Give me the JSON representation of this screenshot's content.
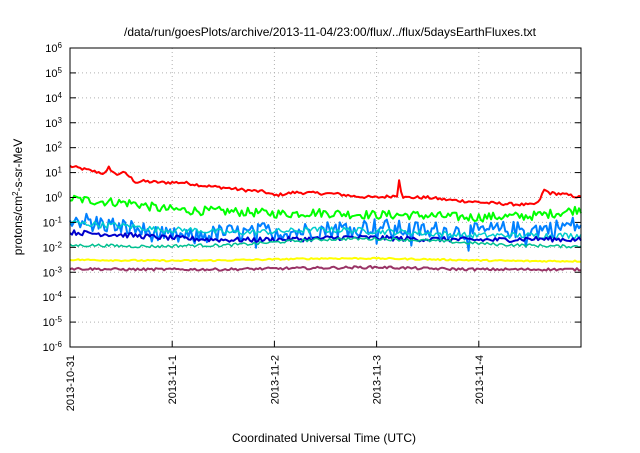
{
  "chart_data": {
    "type": "line",
    "title": "/data/run/goesPlots/archive/2013-11-04/23:00/flux/../flux/5daysEarthFluxes.txt",
    "xlabel": "Coordinated Universal Time (UTC)",
    "ylabel": "protons/cm²-s-sr-MeV",
    "yscale": "log",
    "ylim": [
      1e-06,
      1000000.0
    ],
    "xlim": [
      0,
      5.0
    ],
    "grid": true,
    "legend": "none",
    "x_ticks": [
      {
        "x": 0,
        "label": "2013-10-31"
      },
      {
        "x": 1,
        "label": "2013-11-1"
      },
      {
        "x": 2,
        "label": "2013-11-2"
      },
      {
        "x": 3,
        "label": "2013-11-3"
      },
      {
        "x": 4,
        "label": "2013-11-4"
      }
    ],
    "y_ticks": [
      {
        "exp": -6,
        "mant": "10",
        "sup": "-6"
      },
      {
        "exp": -5,
        "mant": "10",
        "sup": "-5"
      },
      {
        "exp": -4,
        "mant": "10",
        "sup": "-4"
      },
      {
        "exp": -3,
        "mant": "10",
        "sup": "-3"
      },
      {
        "exp": -2,
        "mant": "10",
        "sup": "-2"
      },
      {
        "exp": -1,
        "mant": "10",
        "sup": "-1"
      },
      {
        "exp": 0,
        "mant": "10",
        "sup": "0"
      },
      {
        "exp": 1,
        "mant": "10",
        "sup": "1"
      },
      {
        "exp": 2,
        "mant": "10",
        "sup": "2"
      },
      {
        "exp": 3,
        "mant": "10",
        "sup": "3"
      },
      {
        "exp": 4,
        "mant": "10",
        "sup": "4"
      },
      {
        "exp": 5,
        "mant": "10",
        "sup": "5"
      },
      {
        "exp": 6,
        "mant": "10",
        "sup": "6"
      }
    ],
    "series": [
      {
        "color": "#ff0000",
        "width": 2,
        "x": [
          0,
          0.2,
          0.35,
          0.38,
          0.45,
          0.5,
          0.55,
          0.62,
          0.65,
          0.7,
          0.9,
          1.1,
          1.2,
          1.3,
          1.5,
          1.7,
          1.9,
          2.0,
          2.2,
          2.4,
          2.6,
          2.8,
          3.0,
          3.2,
          3.22,
          3.25,
          3.28,
          3.5,
          3.7,
          3.9,
          4.1,
          4.3,
          4.5,
          4.58,
          4.64,
          4.7,
          4.8,
          4.9,
          5.0
        ],
        "y": [
          18,
          12,
          9,
          16,
          8,
          10,
          9,
          5,
          4,
          4.5,
          4,
          4,
          3.5,
          3,
          2.5,
          2,
          1.7,
          1.2,
          1.6,
          1.5,
          1.4,
          1.1,
          1.0,
          1.2,
          5.5,
          1.1,
          1.0,
          1.0,
          0.8,
          0.7,
          0.6,
          0.55,
          0.5,
          0.6,
          2.0,
          1.5,
          1.4,
          1.2,
          1.0
        ]
      },
      {
        "color": "#00ff00",
        "width": 2,
        "x": [
          0,
          0.3,
          0.6,
          0.9,
          1.2,
          1.5,
          1.8,
          2.1,
          2.4,
          2.7,
          3.0,
          3.3,
          3.6,
          3.9,
          4.2,
          4.5,
          4.8,
          5.0
        ],
        "y": [
          0.9,
          0.7,
          0.6,
          0.35,
          0.3,
          0.28,
          0.25,
          0.22,
          0.25,
          0.22,
          0.2,
          0.2,
          0.18,
          0.16,
          0.17,
          0.18,
          0.25,
          0.35
        ]
      },
      {
        "color": "#0080ff",
        "width": 2,
        "x": [
          0,
          0.3,
          0.6,
          0.9,
          1.2,
          1.5,
          1.8,
          1.95,
          2.1,
          2.4,
          2.7,
          3.0,
          3.3,
          3.6,
          3.9,
          4.2,
          4.5,
          4.75,
          4.9,
          5.0
        ],
        "y": [
          0.15,
          0.09,
          0.06,
          0.03,
          0.025,
          0.04,
          0.035,
          0.06,
          0.04,
          0.05,
          0.06,
          0.07,
          0.05,
          0.05,
          0.04,
          0.05,
          0.05,
          0.06,
          0.08,
          0.07
        ]
      },
      {
        "color": "#00cccc",
        "width": 1.5,
        "x": [
          0,
          0.3,
          0.6,
          0.9,
          1.2,
          1.5,
          1.8,
          2.1,
          2.4,
          2.7,
          3.0,
          3.3,
          3.6,
          3.9,
          4.2,
          4.5,
          4.8,
          5.0
        ],
        "y": [
          0.1,
          0.08,
          0.07,
          0.05,
          0.05,
          0.04,
          0.04,
          0.045,
          0.05,
          0.05,
          0.045,
          0.04,
          0.035,
          0.03,
          0.03,
          0.03,
          0.03,
          0.03
        ]
      },
      {
        "color": "#0000cc",
        "width": 2,
        "x": [
          0,
          0.3,
          0.6,
          0.9,
          1.2,
          1.5,
          1.8,
          2.1,
          2.4,
          2.7,
          3.0,
          3.3,
          3.6,
          3.9,
          4.2,
          4.5,
          4.8,
          5.0
        ],
        "y": [
          0.04,
          0.035,
          0.03,
          0.025,
          0.022,
          0.02,
          0.02,
          0.021,
          0.022,
          0.025,
          0.024,
          0.022,
          0.021,
          0.02,
          0.02,
          0.022,
          0.021,
          0.02
        ]
      },
      {
        "color": "#00c090",
        "width": 1.5,
        "x": [
          0,
          0.3,
          0.6,
          0.9,
          1.2,
          1.5,
          1.8,
          2.1,
          2.4,
          2.7,
          3.0,
          3.3,
          3.6,
          3.9,
          4.2,
          4.5,
          4.8,
          5.0
        ],
        "y": [
          0.012,
          0.012,
          0.011,
          0.011,
          0.012,
          0.012,
          0.014,
          0.017,
          0.02,
          0.022,
          0.022,
          0.02,
          0.018,
          0.015,
          0.013,
          0.012,
          0.011,
          0.011
        ]
      },
      {
        "color": "#ffff00",
        "width": 2,
        "x": [
          0,
          0.5,
          1.0,
          1.5,
          2.0,
          2.5,
          3.0,
          3.5,
          4.0,
          4.5,
          5.0
        ],
        "y": [
          0.0032,
          0.003,
          0.0029,
          0.003,
          0.0033,
          0.0036,
          0.0036,
          0.0033,
          0.003,
          0.0028,
          0.0028
        ]
      },
      {
        "color": "#993366",
        "width": 2,
        "x": [
          0,
          0.5,
          1.0,
          1.5,
          2.0,
          2.5,
          3.0,
          3.5,
          4.0,
          4.5,
          5.0
        ],
        "y": [
          0.0014,
          0.0013,
          0.0013,
          0.0013,
          0.0014,
          0.0015,
          0.0016,
          0.0014,
          0.0013,
          0.0013,
          0.0013
        ]
      }
    ]
  }
}
